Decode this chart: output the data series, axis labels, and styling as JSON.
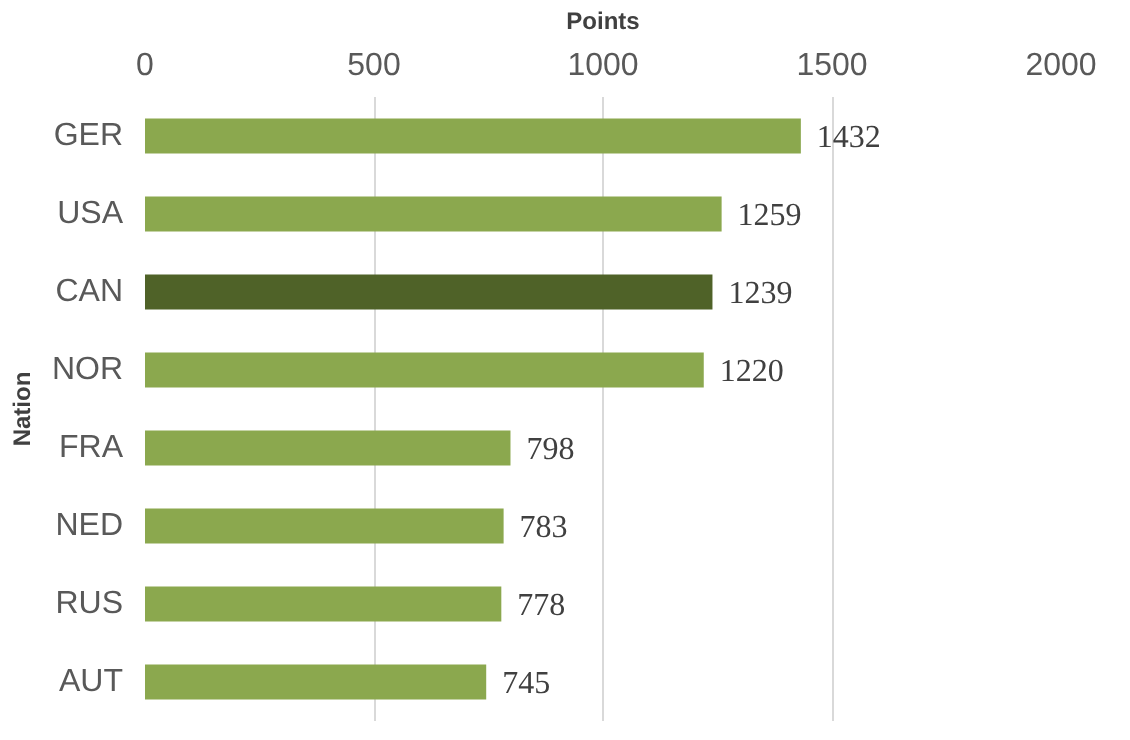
{
  "chart_data": {
    "type": "bar",
    "orientation": "horizontal",
    "xlabel": "Points",
    "ylabel": "Nation",
    "categories": [
      "GER",
      "USA",
      "CAN",
      "NOR",
      "FRA",
      "NED",
      "RUS",
      "AUT"
    ],
    "values": [
      1432,
      1259,
      1239,
      1220,
      798,
      783,
      778,
      745
    ],
    "colors": [
      "#8ba84e",
      "#8ba84e",
      "#4f6228",
      "#8ba84e",
      "#8ba84e",
      "#8ba84e",
      "#8ba84e",
      "#8ba84e"
    ],
    "xlim": [
      0,
      2000
    ],
    "xticks": [
      0,
      500,
      1000,
      1500,
      2000
    ],
    "grid": "x",
    "data_labels": true
  }
}
